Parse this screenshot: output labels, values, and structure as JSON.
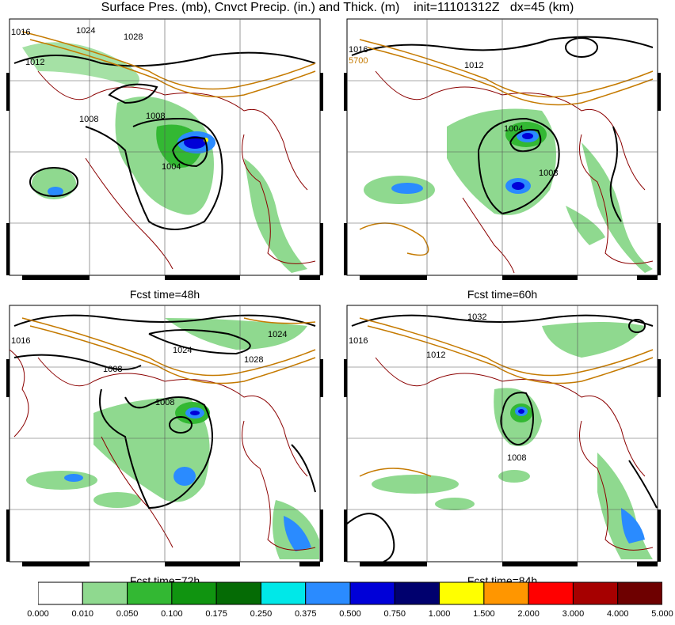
{
  "title": "Surface Pres. (mb), Cnvct Precip. (in.) and Thick. (m)    init=11101312Z   dx=45 (km)",
  "panels": [
    {
      "fcst": "",
      "labels": [
        "1016",
        "1024",
        "1028",
        "1012",
        "1008",
        "1008",
        "1004"
      ]
    },
    {
      "fcst": "Fcst time=48h",
      "labels": [
        "1016",
        "5700",
        "1012",
        "1004",
        "1008"
      ]
    },
    {
      "fcst": "Fcst time=60h",
      "labels": [
        "1016",
        "1024",
        "1028",
        "1024",
        "1008",
        "1008"
      ]
    },
    {
      "fcst": "Fcst time=72h",
      "labels": [
        "1016",
        "1032",
        "1012",
        "1008"
      ]
    }
  ],
  "last_label": "Fcst time=84h",
  "colorbar": {
    "ticks": [
      "0.000",
      "0.010",
      "0.050",
      "0.100",
      "0.175",
      "0.250",
      "0.375",
      "0.500",
      "0.750",
      "1.000",
      "1.500",
      "2.000",
      "3.000",
      "4.000",
      "5.000"
    ],
    "colors": [
      "#ffffff",
      "#8fd98f",
      "#33b833",
      "#109410",
      "#056b05",
      "#00e8e8",
      "#2a8bff",
      "#0000d8",
      "#00006e",
      "#ffff00",
      "#ff9600",
      "#ff0000",
      "#a60000",
      "#6e0000",
      "#a83ba8"
    ]
  }
}
